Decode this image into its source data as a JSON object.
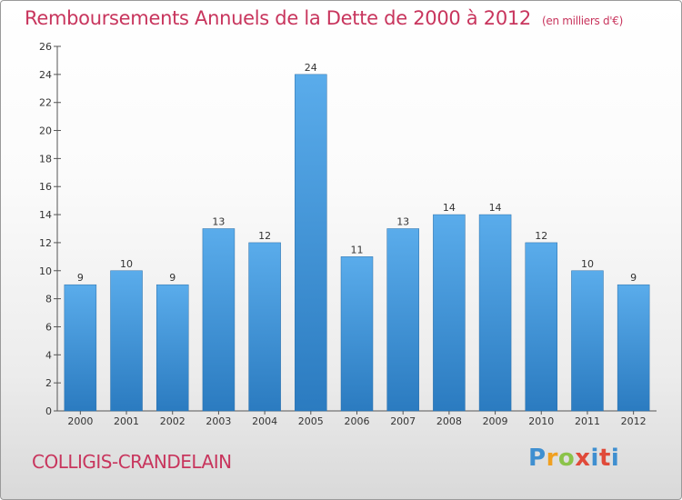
{
  "chart_data": {
    "type": "bar",
    "title": "Remboursements Annuels de la Dette de 2000 à 2012",
    "subtitle": "(en milliers d'€)",
    "categories": [
      "2000",
      "2001",
      "2002",
      "2003",
      "2004",
      "2005",
      "2006",
      "2007",
      "2008",
      "2009",
      "2010",
      "2011",
      "2012"
    ],
    "values": [
      9,
      10,
      9,
      13,
      12,
      24,
      11,
      13,
      14,
      14,
      12,
      10,
      9
    ],
    "ylim": [
      0,
      26
    ],
    "yticks": [
      0,
      2,
      4,
      6,
      8,
      10,
      12,
      14,
      16,
      18,
      20,
      22,
      24,
      26
    ],
    "grid": false,
    "bar_color": "#4a9fe0"
  },
  "footer": {
    "commune": "COLLIGIS-CRANDELAIN",
    "logo": "Proxiti"
  }
}
